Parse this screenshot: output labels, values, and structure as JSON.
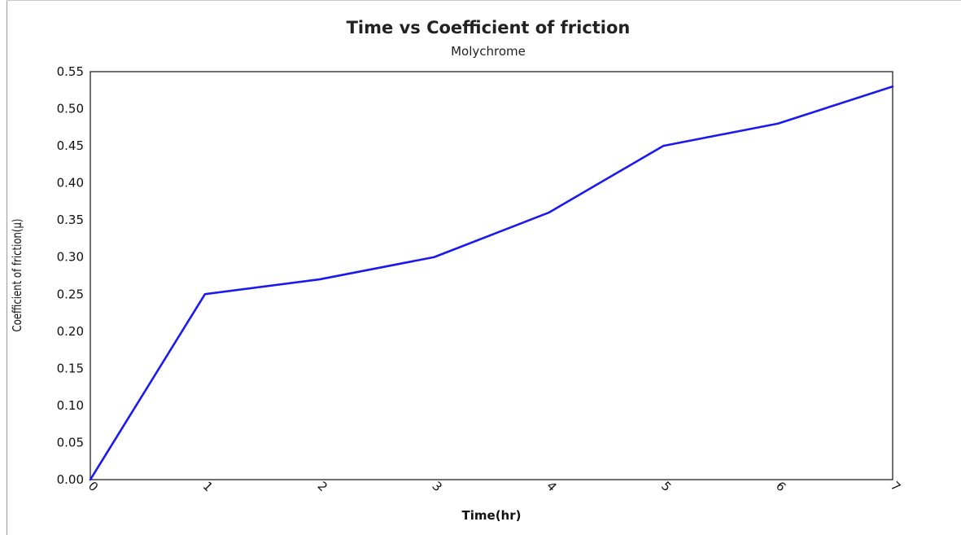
{
  "chart_data": {
    "type": "line",
    "title": "Time vs Coefficient of friction",
    "subtitle": "Molychrome",
    "xlabel": "Time(hr)",
    "ylabel": "Coefficient of friction(µ)",
    "x": [
      0,
      1,
      2,
      3,
      4,
      5,
      6,
      7
    ],
    "series": [
      {
        "values": [
          0.0,
          0.25,
          0.27,
          0.3,
          0.36,
          0.45,
          0.48,
          0.53
        ],
        "color": "#1a1aee"
      }
    ],
    "xlim": [
      0,
      7
    ],
    "ylim": [
      0,
      0.55
    ],
    "x_ticks": [
      "0",
      "1",
      "2",
      "3",
      "4",
      "5",
      "6",
      "7"
    ],
    "y_ticks": [
      "0.00",
      "0.05",
      "0.10",
      "0.15",
      "0.20",
      "0.25",
      "0.30",
      "0.35",
      "0.40",
      "0.45",
      "0.50",
      "0.55"
    ],
    "grid": false,
    "legend": "none"
  }
}
